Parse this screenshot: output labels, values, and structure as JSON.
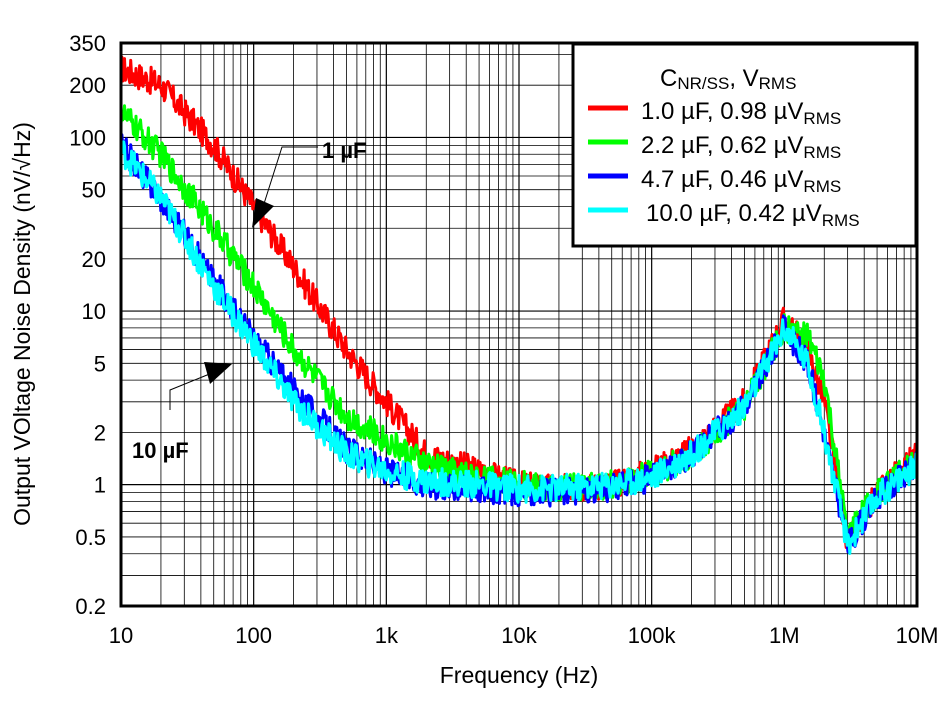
{
  "chart_data": {
    "type": "line",
    "xlabel": "Frequency (Hz)",
    "ylabel": "Output VOltage Noise Density (nV/√Hz)",
    "xscale": "log",
    "yscale": "log",
    "xlim": [
      10,
      10000000
    ],
    "ylim": [
      0.2,
      350
    ],
    "grid": true,
    "x_ticks": [
      {
        "v": 10,
        "label": "10"
      },
      {
        "v": 100,
        "label": "100"
      },
      {
        "v": 1000,
        "label": "1k"
      },
      {
        "v": 10000,
        "label": "10k"
      },
      {
        "v": 100000,
        "label": "100k"
      },
      {
        "v": 1000000,
        "label": "1M"
      },
      {
        "v": 10000000,
        "label": "10M"
      }
    ],
    "y_ticks": [
      {
        "v": 350,
        "label": "350"
      },
      {
        "v": 200,
        "label": "200"
      },
      {
        "v": 100,
        "label": "100"
      },
      {
        "v": 50,
        "label": "50"
      },
      {
        "v": 20,
        "label": "20"
      },
      {
        "v": 10,
        "label": "10"
      },
      {
        "v": 5,
        "label": "5"
      },
      {
        "v": 2,
        "label": "2"
      },
      {
        "v": 1,
        "label": "1"
      },
      {
        "v": 0.5,
        "label": "0.5"
      },
      {
        "v": 0.2,
        "label": "0.2"
      }
    ],
    "legend": {
      "position": "top-right",
      "title_main": "C",
      "title_sub": "NR/SS",
      "title_mid": ", V",
      "title_sub2": "RMS"
    },
    "series": [
      {
        "name": "1.0 µF, 0.98 µV",
        "name_sub": "RMS",
        "color": "#ff0000",
        "x": [
          10,
          20,
          50,
          100,
          200,
          500,
          1000,
          2000,
          5000,
          10000,
          20000,
          50000,
          100000,
          200000,
          500000,
          1000000,
          1500000,
          2000000,
          3000000,
          5000000,
          10000000
        ],
        "y": [
          250,
          200,
          90,
          40,
          18,
          6,
          3,
          1.5,
          1.2,
          1.0,
          0.95,
          1.0,
          1.2,
          1.6,
          3,
          9,
          6,
          3,
          0.45,
          0.9,
          1.5
        ]
      },
      {
        "name": "2.2 µF, 0.62 µV",
        "name_sub": "RMS",
        "color": "#00ff00",
        "x": [
          10,
          20,
          50,
          100,
          200,
          500,
          1000,
          2000,
          5000,
          10000,
          20000,
          50000,
          100000,
          200000,
          500000,
          1000000,
          1500000,
          2000000,
          3000000,
          5000000,
          10000000
        ],
        "y": [
          140,
          80,
          30,
          14,
          6,
          2.5,
          1.8,
          1.3,
          1.1,
          1.0,
          0.95,
          1.0,
          1.15,
          1.5,
          2.8,
          8,
          7,
          4,
          0.5,
          0.9,
          1.4
        ]
      },
      {
        "name": "4.7 µF, 0.46 µV",
        "name_sub": "RMS",
        "color": "#0000ff",
        "x": [
          10,
          20,
          50,
          100,
          200,
          500,
          1000,
          2000,
          5000,
          10000,
          20000,
          50000,
          100000,
          200000,
          500000,
          1000000,
          1500000,
          2000000,
          3000000,
          5000000,
          10000000
        ],
        "y": [
          90,
          45,
          15,
          7,
          3.5,
          1.6,
          1.2,
          1.0,
          0.95,
          0.9,
          0.9,
          0.95,
          1.1,
          1.5,
          2.8,
          8,
          5,
          2,
          0.45,
          0.85,
          1.3
        ]
      },
      {
        "name": "10.0 µF, 0.42 µV",
        "name_sub": "RMS",
        "color": "#00ffff",
        "x": [
          10,
          20,
          50,
          100,
          200,
          500,
          1000,
          2000,
          5000,
          10000,
          20000,
          50000,
          100000,
          200000,
          500000,
          1000000,
          1500000,
          2000000,
          3000000,
          5000000,
          10000000
        ],
        "y": [
          85,
          45,
          14,
          6.5,
          3,
          1.5,
          1.2,
          1.05,
          1.0,
          0.95,
          0.95,
          1.0,
          1.1,
          1.5,
          2.8,
          8,
          5,
          2,
          0.45,
          0.85,
          1.3
        ]
      }
    ],
    "annotations": [
      {
        "text": "1 µF",
        "points_to": "1.0 µF series"
      },
      {
        "text": "10 µF",
        "points_to": "10.0 µF series"
      }
    ]
  }
}
